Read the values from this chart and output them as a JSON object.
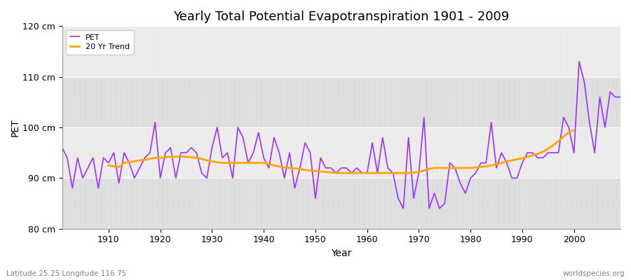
{
  "title": "Yearly Total Potential Evapotranspiration 1901 - 2009",
  "xlabel": "Year",
  "ylabel": "PET",
  "lat_lon_label": "Latitude 25.25 Longitude 116.75",
  "watermark": "worldspecies.org",
  "ylim": [
    80,
    120
  ],
  "yticks": [
    80,
    90,
    100,
    110,
    120
  ],
  "ytick_labels": [
    "80 cm",
    "90 cm",
    "100 cm",
    "110 cm",
    "120 cm"
  ],
  "start_year": 1901,
  "end_year": 2009,
  "pet_color": "#9B30FF",
  "trend_color": "#FFA500",
  "fig_bg_color": "#FFFFFF",
  "plot_bg_color": "#EBEBEB",
  "band_color_light": "#EBEBEB",
  "band_color_dark": "#DEDEDE",
  "grid_color": "#FFFFFF",
  "pet_values": [
    96,
    94,
    88,
    94,
    90,
    92,
    94,
    88,
    94,
    93,
    95,
    89,
    95,
    93,
    90,
    92,
    94,
    95,
    101,
    90,
    95,
    96,
    90,
    95,
    95,
    96,
    95,
    91,
    90,
    96,
    100,
    94,
    95,
    90,
    100,
    98,
    93,
    95,
    99,
    94,
    92,
    98,
    95,
    90,
    95,
    88,
    92,
    97,
    95,
    86,
    94,
    92,
    92,
    91,
    92,
    92,
    91,
    92,
    91,
    91,
    97,
    91,
    98,
    92,
    91,
    86,
    84,
    98,
    86,
    91,
    102,
    84,
    87,
    84,
    85,
    93,
    92,
    89,
    87,
    90,
    91,
    93,
    93,
    101,
    92,
    95,
    93,
    90,
    90,
    93,
    95,
    95,
    94,
    94,
    95,
    95,
    95,
    102,
    100,
    95,
    113,
    109,
    101,
    95,
    106,
    100,
    107,
    106,
    106
  ],
  "trend_values": [
    null,
    null,
    null,
    null,
    null,
    null,
    null,
    null,
    null,
    92.5,
    92.3,
    92.2,
    93.0,
    93.2,
    93.3,
    93.5,
    93.6,
    93.8,
    94.0,
    94.0,
    94.1,
    94.2,
    94.2,
    94.3,
    94.2,
    94.1,
    94.0,
    93.8,
    93.5,
    93.3,
    93.1,
    93.0,
    93.0,
    93.0,
    93.0,
    93.0,
    93.0,
    93.0,
    93.0,
    93.0,
    92.8,
    92.5,
    92.3,
    92.1,
    92.0,
    91.9,
    91.8,
    91.6,
    91.5,
    91.4,
    91.3,
    91.2,
    91.1,
    91.0,
    91.0,
    91.0,
    91.0,
    91.0,
    91.0,
    91.0,
    91.0,
    91.0,
    91.0,
    91.0,
    91.0,
    91.0,
    91.0,
    91.0,
    91.1,
    91.2,
    91.5,
    91.8,
    92.0,
    92.0,
    92.0,
    92.0,
    92.0,
    92.0,
    92.0,
    92.0,
    92.1,
    92.2,
    92.3,
    92.5,
    92.7,
    93.0,
    93.3,
    93.5,
    93.7,
    93.9,
    94.2,
    94.5,
    94.8,
    95.2,
    95.8,
    96.5,
    97.3,
    98.2,
    99.0,
    99.5,
    null,
    null,
    null,
    null,
    null,
    null,
    null,
    null,
    null
  ]
}
